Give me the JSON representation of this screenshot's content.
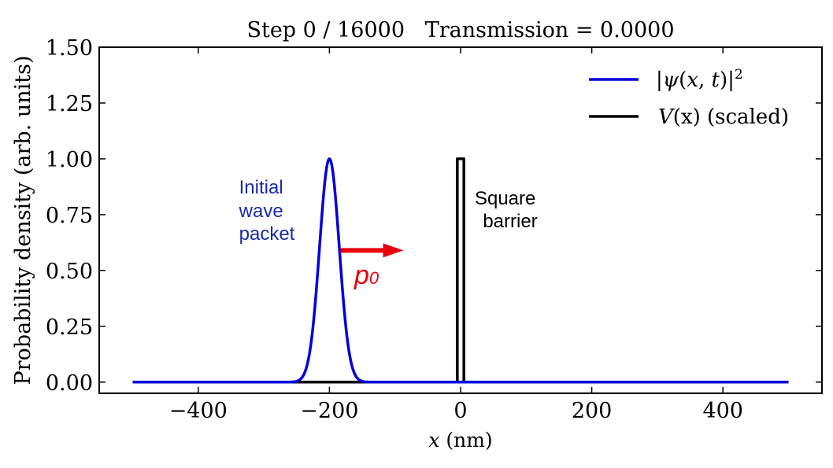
{
  "chart_data": {
    "type": "line",
    "title": "Step 0 / 16000   Transmission = 0.0000",
    "xlabel": "x (nm)",
    "xlabel_var": "x",
    "xlabel_unit": " (nm)",
    "ylabel": "Probability density (arb. units)",
    "xlim": [
      -551,
      551
    ],
    "ylim": [
      -0.05,
      1.5
    ],
    "xticks": [
      -400,
      -200,
      0,
      200,
      400
    ],
    "xtick_labels": [
      "−400",
      "−200",
      "0",
      "200",
      "400"
    ],
    "yticks": [
      0.0,
      0.25,
      0.5,
      0.75,
      1.0,
      1.25,
      1.5
    ],
    "ytick_labels": [
      "0.00",
      "0.25",
      "0.50",
      "0.75",
      "1.00",
      "1.25",
      "1.50"
    ],
    "grid": false,
    "legend_position": "top-right",
    "series": [
      {
        "name": "|ψ(x,t)|²",
        "color": "#0000dd",
        "kind": "gaussian",
        "x_range": [
          -500,
          500
        ],
        "center": -200,
        "sigma": 15,
        "amplitude": 1.0
      },
      {
        "name": "V(x) (scaled)",
        "color": "#000000",
        "kind": "square_barrier",
        "x_range": [
          -500,
          500
        ],
        "barrier_left": -5,
        "barrier_right": 5,
        "height": 1.0
      }
    ],
    "legend": {
      "psi_label_parts": [
        "|",
        "ψ",
        "(",
        "x",
        ", ",
        "t",
        ")|",
        "2"
      ],
      "v_label_var": "V",
      "v_label_paren": "(x)",
      "v_label_rest": " (scaled)"
    },
    "annotations": {
      "packet_label": [
        "Initial",
        "wave",
        "packet"
      ],
      "barrier_label": [
        "Square",
        "barrier"
      ],
      "momentum_label": "p",
      "momentum_sub": "0",
      "arrow": {
        "x_start": -183,
        "x_end": -87,
        "y": 0.59,
        "color": "#e8000b"
      }
    }
  }
}
